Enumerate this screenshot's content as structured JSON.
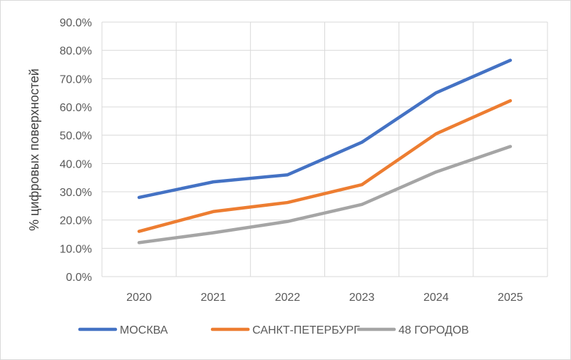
{
  "chart_data": {
    "type": "line",
    "title": "",
    "xlabel": "",
    "ylabel": "% цифровых поверхностей",
    "categories": [
      "2020",
      "2021",
      "2022",
      "2023",
      "2024",
      "2025"
    ],
    "ylim": [
      0,
      0.9
    ],
    "ytick_labels": [
      "0.0%",
      "10.0%",
      "20.0%",
      "30.0%",
      "40.0%",
      "50.0%",
      "60.0%",
      "70.0%",
      "80.0%",
      "90.0%"
    ],
    "grid": true,
    "legend_position": "bottom",
    "series": [
      {
        "name": "МОСКВА",
        "color": "#4472C4",
        "values": [
          0.28,
          0.335,
          0.36,
          0.475,
          0.65,
          0.765
        ]
      },
      {
        "name": "САНКТ-ПЕТЕРБУРГ",
        "color": "#ED7D31",
        "values": [
          0.16,
          0.23,
          0.262,
          0.325,
          0.505,
          0.622
        ]
      },
      {
        "name": "48 ГОРОДОВ",
        "color": "#A5A5A5",
        "values": [
          0.12,
          0.155,
          0.195,
          0.255,
          0.37,
          0.46
        ]
      }
    ]
  }
}
